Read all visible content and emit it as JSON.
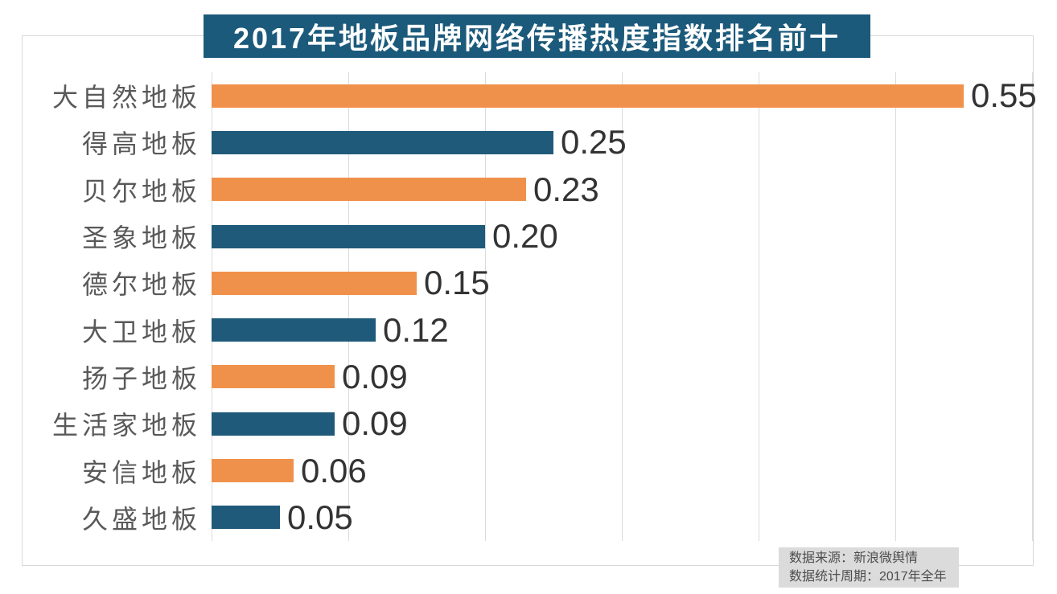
{
  "header": {
    "title": "2017年地板品牌网络传播热度指数排名前十"
  },
  "chart_data": {
    "type": "bar",
    "orientation": "horizontal",
    "title": "2017年地板品牌网络传播热度指数排名前十",
    "categories": [
      "大自然地板",
      "得高地板",
      "贝尔地板",
      "圣象地板",
      "德尔地板",
      "大卫地板",
      "扬子地板",
      "生活家地板",
      "安信地板",
      "久盛地板"
    ],
    "values": [
      0.55,
      0.25,
      0.23,
      0.2,
      0.15,
      0.12,
      0.09,
      0.09,
      0.06,
      0.05
    ],
    "value_labels": [
      "0.55",
      "0.25",
      "0.23",
      "0.20",
      "0.15",
      "0.12",
      "0.09",
      "0.09",
      "0.06",
      "0.05"
    ],
    "xlim": [
      0,
      0.6
    ],
    "x_gridline_step": 0.1,
    "grid": true,
    "legend_position": "none",
    "bar_colors_alternate": [
      "#F0914B",
      "#1F5A7A"
    ]
  },
  "footer": {
    "source": "数据来源：新浪微舆情",
    "period": "数据统计周期：2017年全年"
  },
  "colors": {
    "title_bg": "#1C5A7B",
    "title_text": "#FFFFFF",
    "bar_orange": "#F0914B",
    "bar_blue": "#1F5A7A",
    "gridline": "#DBDBDB",
    "frame_border": "#D9D9D9",
    "category_label": "#595959",
    "value_label": "#333333",
    "footer_bg": "#DBDBDB",
    "footer_text": "#4D4D4D"
  }
}
